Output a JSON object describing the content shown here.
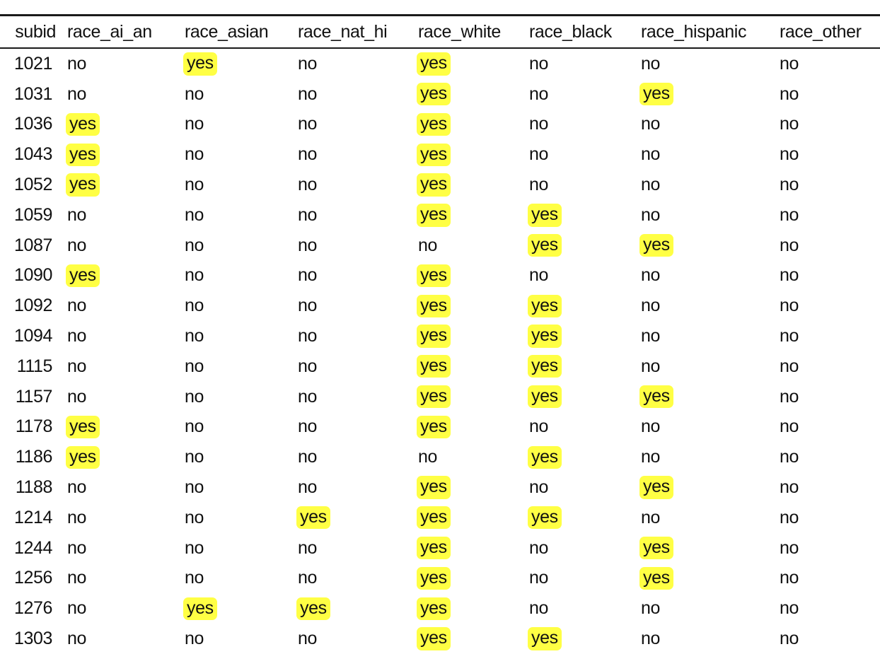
{
  "table": {
    "columns": [
      "subid",
      "race_ai_an",
      "race_asian",
      "race_nat_hi",
      "race_white",
      "race_black",
      "race_hispanic",
      "race_other"
    ],
    "highlight_color": "#ffff44",
    "rows": [
      [
        "1021",
        "no",
        "yes",
        "no",
        "yes",
        "no",
        "no",
        "no"
      ],
      [
        "1031",
        "no",
        "no",
        "no",
        "yes",
        "no",
        "yes",
        "no"
      ],
      [
        "1036",
        "yes",
        "no",
        "no",
        "yes",
        "no",
        "no",
        "no"
      ],
      [
        "1043",
        "yes",
        "no",
        "no",
        "yes",
        "no",
        "no",
        "no"
      ],
      [
        "1052",
        "yes",
        "no",
        "no",
        "yes",
        "no",
        "no",
        "no"
      ],
      [
        "1059",
        "no",
        "no",
        "no",
        "yes",
        "yes",
        "no",
        "no"
      ],
      [
        "1087",
        "no",
        "no",
        "no",
        "no",
        "yes",
        "yes",
        "no"
      ],
      [
        "1090",
        "yes",
        "no",
        "no",
        "yes",
        "no",
        "no",
        "no"
      ],
      [
        "1092",
        "no",
        "no",
        "no",
        "yes",
        "yes",
        "no",
        "no"
      ],
      [
        "1094",
        "no",
        "no",
        "no",
        "yes",
        "yes",
        "no",
        "no"
      ],
      [
        "1115",
        "no",
        "no",
        "no",
        "yes",
        "yes",
        "no",
        "no"
      ],
      [
        "1157",
        "no",
        "no",
        "no",
        "yes",
        "yes",
        "yes",
        "no"
      ],
      [
        "1178",
        "yes",
        "no",
        "no",
        "yes",
        "no",
        "no",
        "no"
      ],
      [
        "1186",
        "yes",
        "no",
        "no",
        "no",
        "yes",
        "no",
        "no"
      ],
      [
        "1188",
        "no",
        "no",
        "no",
        "yes",
        "no",
        "yes",
        "no"
      ],
      [
        "1214",
        "no",
        "no",
        "yes",
        "yes",
        "yes",
        "no",
        "no"
      ],
      [
        "1244",
        "no",
        "no",
        "no",
        "yes",
        "no",
        "yes",
        "no"
      ],
      [
        "1256",
        "no",
        "no",
        "no",
        "yes",
        "no",
        "yes",
        "no"
      ],
      [
        "1276",
        "no",
        "yes",
        "yes",
        "yes",
        "no",
        "no",
        "no"
      ],
      [
        "1303",
        "no",
        "no",
        "no",
        "yes",
        "yes",
        "no",
        "no"
      ]
    ]
  }
}
